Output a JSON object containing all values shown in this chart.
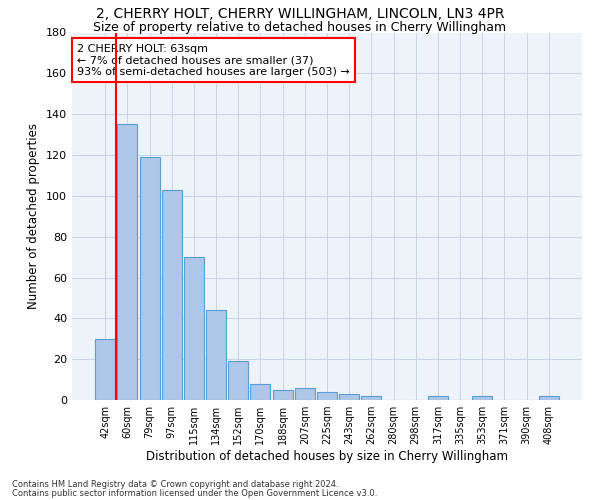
{
  "title": "2, CHERRY HOLT, CHERRY WILLINGHAM, LINCOLN, LN3 4PR",
  "subtitle": "Size of property relative to detached houses in Cherry Willingham",
  "xlabel": "Distribution of detached houses by size in Cherry Willingham",
  "ylabel": "Number of detached properties",
  "footnote1": "Contains HM Land Registry data © Crown copyright and database right 2024.",
  "footnote2": "Contains public sector information licensed under the Open Government Licence v3.0.",
  "categories": [
    "42sqm",
    "60sqm",
    "79sqm",
    "97sqm",
    "115sqm",
    "134sqm",
    "152sqm",
    "170sqm",
    "188sqm",
    "207sqm",
    "225sqm",
    "243sqm",
    "262sqm",
    "280sqm",
    "298sqm",
    "317sqm",
    "335sqm",
    "353sqm",
    "371sqm",
    "390sqm",
    "408sqm"
  ],
  "values": [
    30,
    135,
    119,
    103,
    70,
    44,
    19,
    8,
    5,
    6,
    4,
    3,
    2,
    0,
    0,
    2,
    0,
    2,
    0,
    0,
    2
  ],
  "bar_color": "#aec6e8",
  "bar_edge_color": "#5a9fd4",
  "vline_color": "red",
  "vline_x_index": 1,
  "annotation_text": "2 CHERRY HOLT: 63sqm\n← 7% of detached houses are smaller (37)\n93% of semi-detached houses are larger (503) →",
  "annotation_box_color": "white",
  "annotation_box_edge_color": "red",
  "ylim": [
    0,
    180
  ],
  "yticks": [
    0,
    20,
    40,
    60,
    80,
    100,
    120,
    140,
    160,
    180
  ],
  "bg_color": "#eef2f9",
  "grid_color": "#c8d4e8",
  "title_fontsize": 10,
  "subtitle_fontsize": 9
}
